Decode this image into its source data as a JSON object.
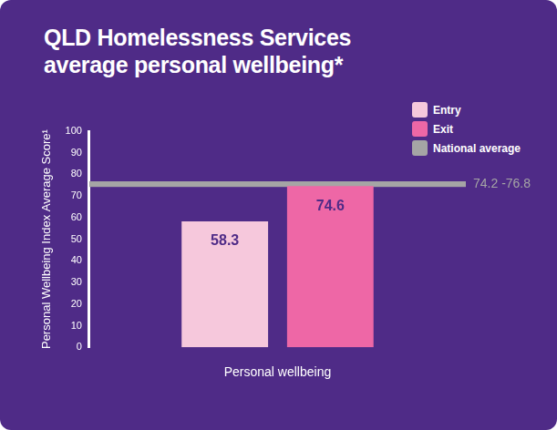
{
  "chart_data": {
    "type": "bar",
    "title": "QLD Homelessness Services average personal wellbeing*",
    "y_label": "Personal Wellbeing Index Average Score¹",
    "categories": [
      "Personal wellbeing"
    ],
    "series": [
      {
        "name": "Entry",
        "color": "#f6c8dc",
        "values": [
          58.3
        ]
      },
      {
        "name": "Exit",
        "color": "#ee67a6",
        "values": [
          74.6
        ]
      }
    ],
    "annotations": [
      {
        "name": "National average",
        "text": "74.2 -76.8",
        "ymin": 74.2,
        "ymax": 76.8,
        "color": "#a5a5a5"
      }
    ],
    "ylim": [
      0,
      100
    ],
    "yticks": [
      0,
      10,
      20,
      30,
      40,
      50,
      60,
      70,
      80,
      90,
      100
    ],
    "grid": false,
    "legend": "top-right",
    "data_labels": true
  }
}
